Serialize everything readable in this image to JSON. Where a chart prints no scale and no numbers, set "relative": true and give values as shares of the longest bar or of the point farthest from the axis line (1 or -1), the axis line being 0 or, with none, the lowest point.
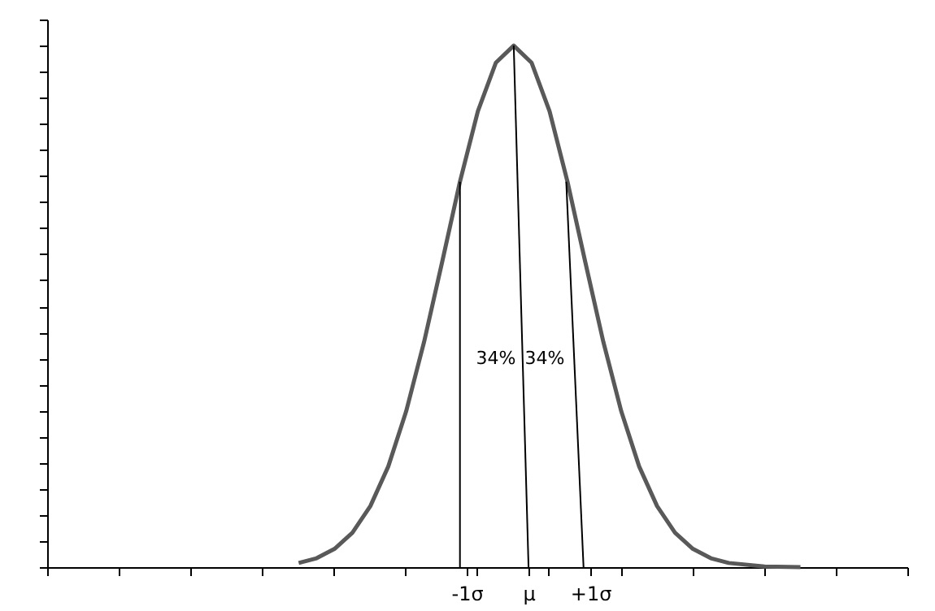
{
  "chart_data": {
    "type": "line",
    "relative": true,
    "marker": "none",
    "line_style": "solid",
    "xlim": [
      -7.79,
      6.13
    ],
    "xticks": [
      {
        "value": -7.79,
        "label": null
      },
      {
        "value": -6.63,
        "label": null
      },
      {
        "value": -5.47,
        "label": null
      },
      {
        "value": -4.32,
        "label": null
      },
      {
        "value": -3.16,
        "label": null
      },
      {
        "value": -2.0,
        "label": null
      },
      {
        "value": -0.84,
        "label": null
      },
      {
        "value": 0.32,
        "label": null
      },
      {
        "value": 1.5,
        "label": null
      },
      {
        "value": 2.66,
        "label": null
      },
      {
        "value": 3.82,
        "label": null
      },
      {
        "value": 4.97,
        "label": null
      },
      {
        "value": 6.13,
        "label": null
      },
      {
        "value": -1,
        "label": "-1σ"
      },
      {
        "value": 0,
        "label": "μ"
      },
      {
        "value": 1,
        "label": "+1σ"
      }
    ],
    "tick_labels": "x",
    "series": [
      {
        "color": "#595959",
        "x": [
          -3.72,
          -3.43,
          -3.14,
          -2.85,
          -2.56,
          -2.27,
          -1.98,
          -1.69,
          -1.4,
          -1.11,
          -0.82,
          -0.53,
          -0.24,
          0.05,
          0.34,
          0.63,
          0.92,
          1.21,
          1.5,
          1.79,
          2.08,
          2.37,
          2.66,
          2.95,
          3.24,
          3.82,
          4.4
        ],
        "values": [
          0.008,
          0.017,
          0.035,
          0.066,
          0.117,
          0.193,
          0.299,
          0.432,
          0.584,
          0.739,
          0.874,
          0.967,
          1,
          0.967,
          0.874,
          0.739,
          0.584,
          0.432,
          0.299,
          0.193,
          0.117,
          0.066,
          0.035,
          0.017,
          0.008,
          0.001,
          0
        ]
      },
      {
        "color": "#000000",
        "x": [
          -1.11,
          -1.11
        ],
        "values": [
          0,
          0.739
        ]
      },
      {
        "color": "#000000",
        "x": [
          0,
          -0.24
        ],
        "values": [
          0,
          1
        ]
      },
      {
        "color": "#000000",
        "x": [
          0.89,
          0.61
        ],
        "values": [
          0,
          0.739
        ]
      }
    ],
    "annotations": [
      "34%",
      "34%"
    ]
  }
}
